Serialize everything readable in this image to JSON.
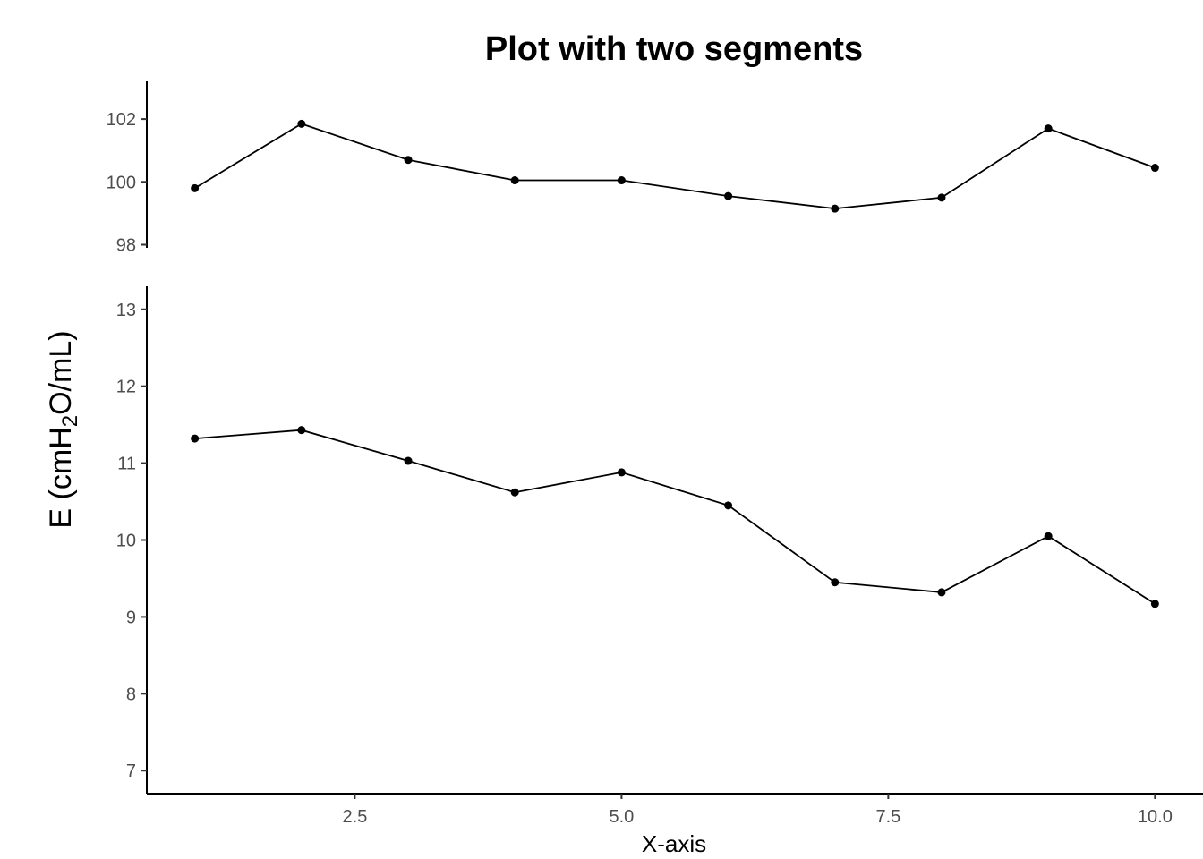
{
  "chart_data": {
    "type": "line",
    "title": "Plot with two segments",
    "xlabel": "X-axis",
    "ylabel": {
      "main": "E (cmH",
      "subscript": "2",
      "tail": "O/mL)"
    },
    "x_ticks": [
      "2.5",
      "5.0",
      "7.5",
      "10.0"
    ],
    "x_tick_values": [
      2.5,
      5.0,
      7.5,
      10.0
    ],
    "xlim": [
      0.55,
      10.45
    ],
    "grid": false,
    "segments": [
      {
        "ylim": [
          97.9,
          103.2
        ],
        "y_ticks": [
          "98",
          "100",
          "102"
        ],
        "y_tick_values": [
          98,
          100,
          102
        ],
        "x": [
          1,
          2,
          3,
          4,
          5,
          6,
          7,
          8,
          9,
          10
        ],
        "values": [
          99.8,
          101.85,
          100.7,
          100.05,
          100.05,
          99.55,
          99.15,
          99.5,
          101.7,
          100.45
        ]
      },
      {
        "ylim": [
          6.7,
          13.3
        ],
        "y_ticks": [
          "7",
          "8",
          "9",
          "10",
          "11",
          "12",
          "13"
        ],
        "y_tick_values": [
          7,
          8,
          9,
          10,
          11,
          12,
          13
        ],
        "x": [
          1,
          2,
          3,
          4,
          5,
          6,
          7,
          8,
          9,
          10
        ],
        "values": [
          11.32,
          11.43,
          11.03,
          10.62,
          10.88,
          10.45,
          9.45,
          9.32,
          10.05,
          9.17
        ]
      }
    ]
  }
}
